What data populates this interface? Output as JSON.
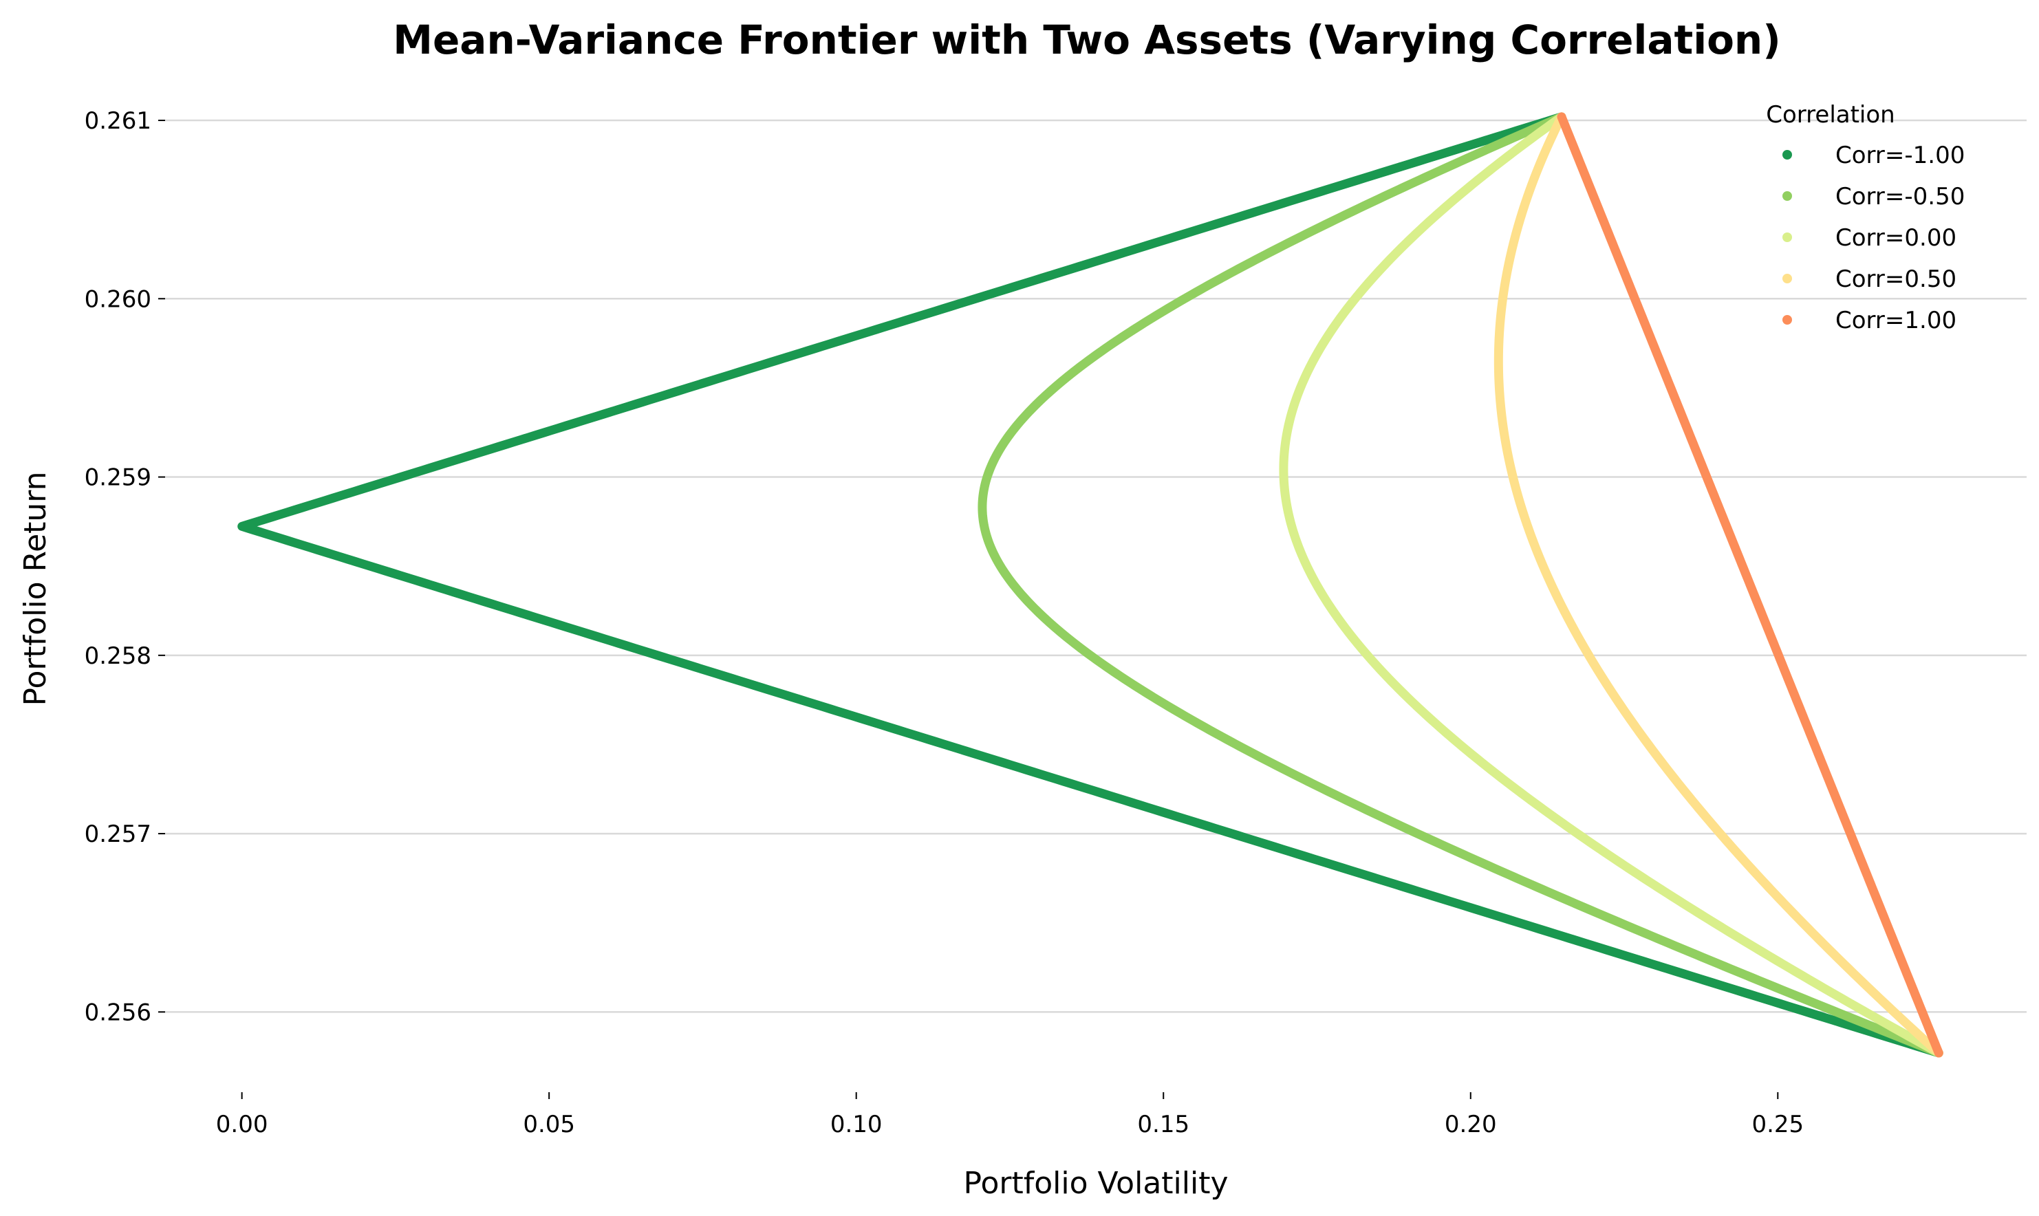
{
  "chart_data": {
    "type": "line",
    "title": "Mean-Variance Frontier with Two Assets (Varying Correlation)",
    "xlabel": "Portfolio Volatility",
    "ylabel": "Portfolio Return",
    "xlim": [
      -0.0125,
      0.2905
    ],
    "ylim": [
      0.25555,
      0.26122
    ],
    "x_ticks": [
      "0.00",
      "0.05",
      "0.10",
      "0.15",
      "0.20",
      "0.25"
    ],
    "x_tick_values": [
      0.0,
      0.05,
      0.1,
      0.15,
      0.2,
      0.25
    ],
    "y_ticks": [
      "0.256",
      "0.257",
      "0.258",
      "0.259",
      "0.260",
      "0.261"
    ],
    "y_tick_values": [
      0.256,
      0.257,
      0.258,
      0.259,
      0.26,
      0.261
    ],
    "grid": "horizontal",
    "legend": {
      "title": "Correlation",
      "placement": "top-right"
    },
    "assets": [
      {
        "expected_return": 0.26102,
        "volatility": 0.2148
      },
      {
        "expected_return": 0.25577,
        "volatility": 0.2762
      }
    ],
    "series": [
      {
        "name": "Corr=-1.00",
        "correlation": -1.0,
        "color": "#1a9850"
      },
      {
        "name": "Corr=-0.50",
        "correlation": -0.5,
        "color": "#91cf60"
      },
      {
        "name": "Corr=0.00",
        "correlation": 0.0,
        "color": "#d9ef8b"
      },
      {
        "name": "Corr=0.50",
        "correlation": 0.5,
        "color": "#fee08b"
      },
      {
        "name": "Corr=1.00",
        "correlation": 1.0,
        "color": "#fc8d59"
      }
    ]
  }
}
